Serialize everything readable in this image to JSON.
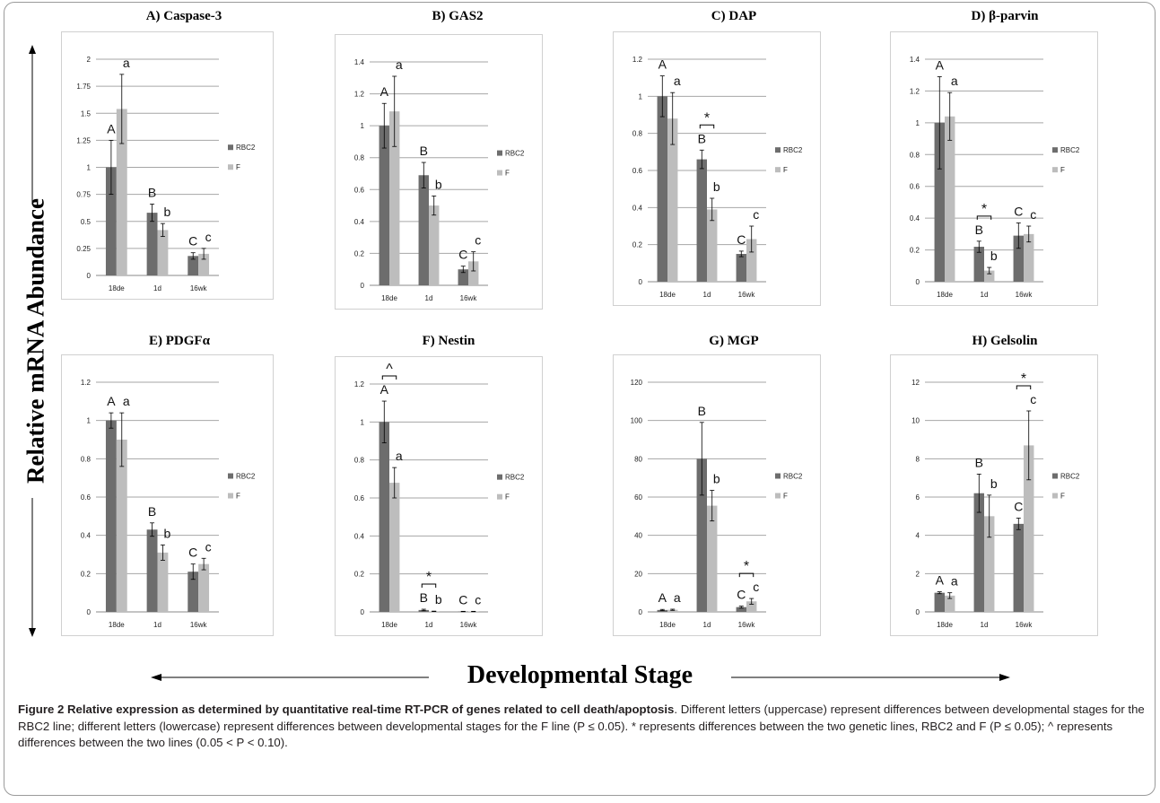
{
  "figure": {
    "y_axis_title": "Relative mRNA Abundance",
    "x_axis_title": "Developmental Stage",
    "caption_label": "Figure 2 Relative expression as determined by quantitative real-time RT-PCR of genes related to cell death/apoptosis",
    "caption_text": ". Different letters (uppercase) represent differences between developmental stages for the RBC2 line; different letters (lowercase) represent differences between developmental stages for the F line (P ≤ 0.05). * represents differences between the two genetic lines, RBC2 and F (P ≤ 0.05); ^ represents differences between the two lines (0.05 < P < 0.10).",
    "colors": {
      "RBC2": "#6d6d6d",
      "F": "#bdbdbd",
      "grid": "#a6a6a6"
    }
  },
  "chart_data": [
    {
      "type": "bar",
      "title": "A) Caspase-3",
      "categories": [
        "18de",
        "1d",
        "16wk"
      ],
      "series": [
        {
          "name": "RBC2",
          "values": [
            1.0,
            0.58,
            0.18
          ],
          "errors": [
            0.25,
            0.08,
            0.03
          ]
        },
        {
          "name": "F",
          "values": [
            1.54,
            0.42,
            0.2
          ],
          "errors": [
            0.32,
            0.06,
            0.05
          ]
        }
      ],
      "ylim": [
        0,
        2
      ],
      "yticks": [
        "0",
        "0.25",
        "0.5",
        "0.75",
        "1",
        "1.25",
        "1.5",
        "1.75",
        "2"
      ],
      "letters_upper": [
        "A",
        "B",
        "C"
      ],
      "letters_lower": [
        "a",
        "b",
        "c"
      ],
      "stars": []
    },
    {
      "type": "bar",
      "title": "B) GAS2",
      "categories": [
        "18de",
        "1d",
        "16wk"
      ],
      "series": [
        {
          "name": "RBC2",
          "values": [
            1.0,
            0.69,
            0.1
          ],
          "errors": [
            0.14,
            0.08,
            0.02
          ]
        },
        {
          "name": "F",
          "values": [
            1.09,
            0.5,
            0.15
          ],
          "errors": [
            0.22,
            0.06,
            0.06
          ]
        }
      ],
      "ylim": [
        0,
        1.4
      ],
      "yticks": [
        "0",
        "0.2",
        "0.4",
        "0.6",
        "0.8",
        "1",
        "1.2",
        "1.4"
      ],
      "letters_upper": [
        "A",
        "B",
        "C"
      ],
      "letters_lower": [
        "a",
        "b",
        "c"
      ],
      "stars": []
    },
    {
      "type": "bar",
      "title": "C) DAP",
      "categories": [
        "18de",
        "1d",
        "16wk"
      ],
      "series": [
        {
          "name": "RBC2",
          "values": [
            1.0,
            0.66,
            0.15
          ],
          "errors": [
            0.11,
            0.05,
            0.015
          ]
        },
        {
          "name": "F",
          "values": [
            0.88,
            0.39,
            0.23
          ],
          "errors": [
            0.14,
            0.06,
            0.07
          ]
        }
      ],
      "ylim": [
        0,
        1.2
      ],
      "yticks": [
        "0",
        "0.2",
        "0.4",
        "0.6",
        "0.8",
        "1",
        "1.2"
      ],
      "letters_upper": [
        "A",
        "B",
        "C"
      ],
      "letters_lower": [
        "a",
        "b",
        "c"
      ],
      "stars": [
        {
          "symbol": "*",
          "category": "1d"
        }
      ]
    },
    {
      "type": "bar",
      "title": "D) β-parvin",
      "categories": [
        "18de",
        "1d",
        "16wk"
      ],
      "series": [
        {
          "name": "RBC2",
          "values": [
            1.0,
            0.22,
            0.29
          ],
          "errors": [
            0.29,
            0.035,
            0.08
          ]
        },
        {
          "name": "F",
          "values": [
            1.04,
            0.07,
            0.3
          ],
          "errors": [
            0.15,
            0.02,
            0.05
          ]
        }
      ],
      "ylim": [
        0,
        1.4
      ],
      "yticks": [
        "0",
        "0.2",
        "0.4",
        "0.6",
        "0.8",
        "1",
        "1.2",
        "1.4"
      ],
      "letters_upper": [
        "A",
        "B",
        "C"
      ],
      "letters_lower": [
        "a",
        "b",
        "c"
      ],
      "stars": [
        {
          "symbol": "*",
          "category": "1d"
        }
      ]
    },
    {
      "type": "bar",
      "title": "E) PDGFα",
      "categories": [
        "18de",
        "1d",
        "16wk"
      ],
      "series": [
        {
          "name": "RBC2",
          "values": [
            1.0,
            0.43,
            0.21
          ],
          "errors": [
            0.04,
            0.035,
            0.04
          ]
        },
        {
          "name": "F",
          "values": [
            0.9,
            0.31,
            0.25
          ],
          "errors": [
            0.14,
            0.04,
            0.03
          ]
        }
      ],
      "ylim": [
        0,
        1.2
      ],
      "yticks": [
        "0",
        "0.2",
        "0.4",
        "0.6",
        "0.8",
        "1",
        "1.2"
      ],
      "letters_upper": [
        "A",
        "B",
        "C"
      ],
      "letters_lower": [
        "a",
        "b",
        "c"
      ],
      "stars": []
    },
    {
      "type": "bar",
      "title": "F) Nestin",
      "categories": [
        "18de",
        "1d",
        "16wk"
      ],
      "series": [
        {
          "name": "RBC2",
          "values": [
            1.0,
            0.01,
            0.002
          ],
          "errors": [
            0.11,
            0.004,
            0.001
          ]
        },
        {
          "name": "F",
          "values": [
            0.68,
            0.003,
            0.002
          ],
          "errors": [
            0.08,
            0.001,
            0.001
          ]
        }
      ],
      "ylim": [
        0,
        1.2
      ],
      "yticks": [
        "0",
        "0.2",
        "0.4",
        "0.6",
        "0.8",
        "1",
        "1.2"
      ],
      "letters_upper": [
        "A",
        "B",
        "C"
      ],
      "letters_lower": [
        "a",
        "b",
        "c"
      ],
      "stars": [
        {
          "symbol": "^",
          "category": "18de"
        },
        {
          "symbol": "*",
          "category": "1d"
        }
      ]
    },
    {
      "type": "bar",
      "title": "G) MGP",
      "categories": [
        "18de",
        "1d",
        "16wk"
      ],
      "series": [
        {
          "name": "RBC2",
          "values": [
            1.0,
            80,
            2.5
          ],
          "errors": [
            0.3,
            19,
            0.5
          ]
        },
        {
          "name": "F",
          "values": [
            1.1,
            55.5,
            5.5
          ],
          "errors": [
            0.3,
            8,
            1.5
          ]
        }
      ],
      "ylim": [
        0,
        120
      ],
      "yticks": [
        "0",
        "20",
        "40",
        "60",
        "80",
        "100",
        "120"
      ],
      "letters_upper": [
        "A",
        "B",
        "C"
      ],
      "letters_lower": [
        "a",
        "b",
        "c"
      ],
      "stars": [
        {
          "symbol": "*",
          "category": "16wk"
        }
      ]
    },
    {
      "type": "bar",
      "title": "H) Gelsolin",
      "categories": [
        "18de",
        "1d",
        "16wk"
      ],
      "series": [
        {
          "name": "RBC2",
          "values": [
            1.0,
            6.2,
            4.6
          ],
          "errors": [
            0.05,
            1.0,
            0.3
          ]
        },
        {
          "name": "F",
          "values": [
            0.85,
            5.0,
            8.7
          ],
          "errors": [
            0.15,
            1.1,
            1.8
          ]
        }
      ],
      "ylim": [
        0,
        12
      ],
      "yticks": [
        "0",
        "2",
        "4",
        "6",
        "8",
        "10",
        "12"
      ],
      "letters_upper": [
        "A",
        "B",
        "C"
      ],
      "letters_lower": [
        "a",
        "b",
        "c"
      ],
      "stars": [
        {
          "symbol": "*",
          "category": "16wk"
        }
      ]
    }
  ]
}
